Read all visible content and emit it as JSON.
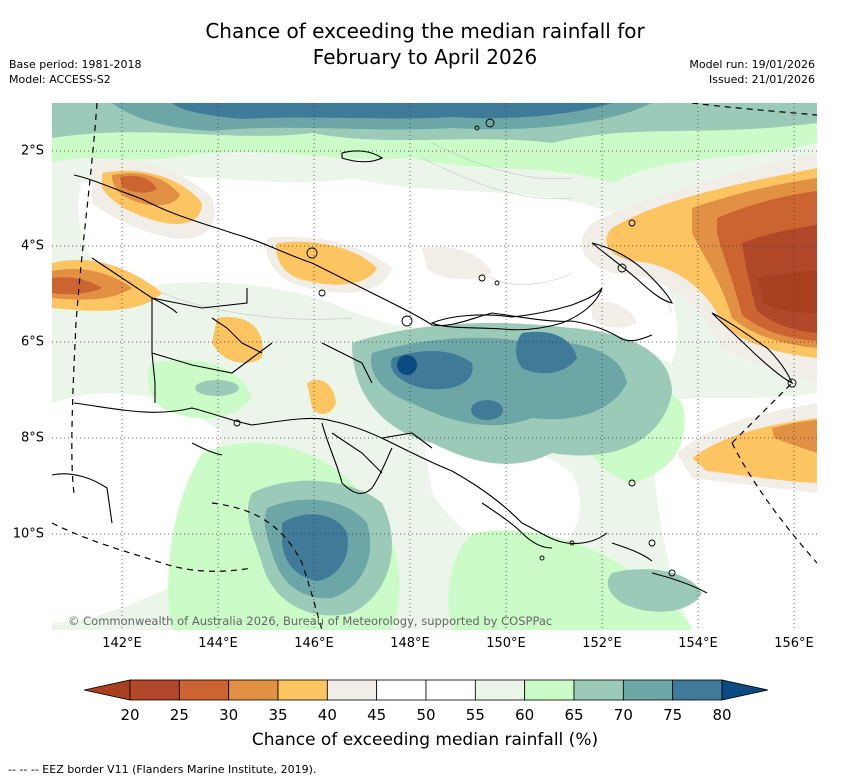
{
  "header": {
    "title_line1": "Chance of exceeding the median rainfall for",
    "title_line2": "February to April 2026",
    "base_period": "Base period: 1981-2018",
    "model": "Model: ACCESS-S2",
    "model_run": "Model run: 19/01/2026",
    "issued": "Issued: 21/01/2026"
  },
  "map": {
    "lon_ticks": [
      "142°E",
      "144°E",
      "146°E",
      "148°E",
      "150°E",
      "152°E",
      "154°E",
      "156°E"
    ],
    "lat_ticks": [
      "2°S",
      "4°S",
      "6°S",
      "8°S",
      "10°S"
    ],
    "lon_range": [
      141,
      157
    ],
    "lat_range": [
      -11.6,
      -1
    ],
    "copyright": "© Commonwealth of Australia 2026, Bureau of Meteorology, supported by COSPPac"
  },
  "legend": {
    "labels": [
      "20",
      "25",
      "30",
      "35",
      "40",
      "45",
      "50",
      "55",
      "60",
      "65",
      "70",
      "75",
      "80"
    ],
    "colors": [
      "#a8401f",
      "#b2482a",
      "#cc6431",
      "#e19044",
      "#fcc562",
      "#f1ede7",
      "#ffffff",
      "#ffffff",
      "#ecf5ea",
      "#cbfcc7",
      "#9bcbb8",
      "#6da6a6",
      "#407a99",
      "#0a4b81"
    ],
    "title": "Chance of exceeding median rainfall (%)"
  },
  "footnote": "--  --  -- EEZ border V11 (Flanders Marine Institute, 2019)."
}
